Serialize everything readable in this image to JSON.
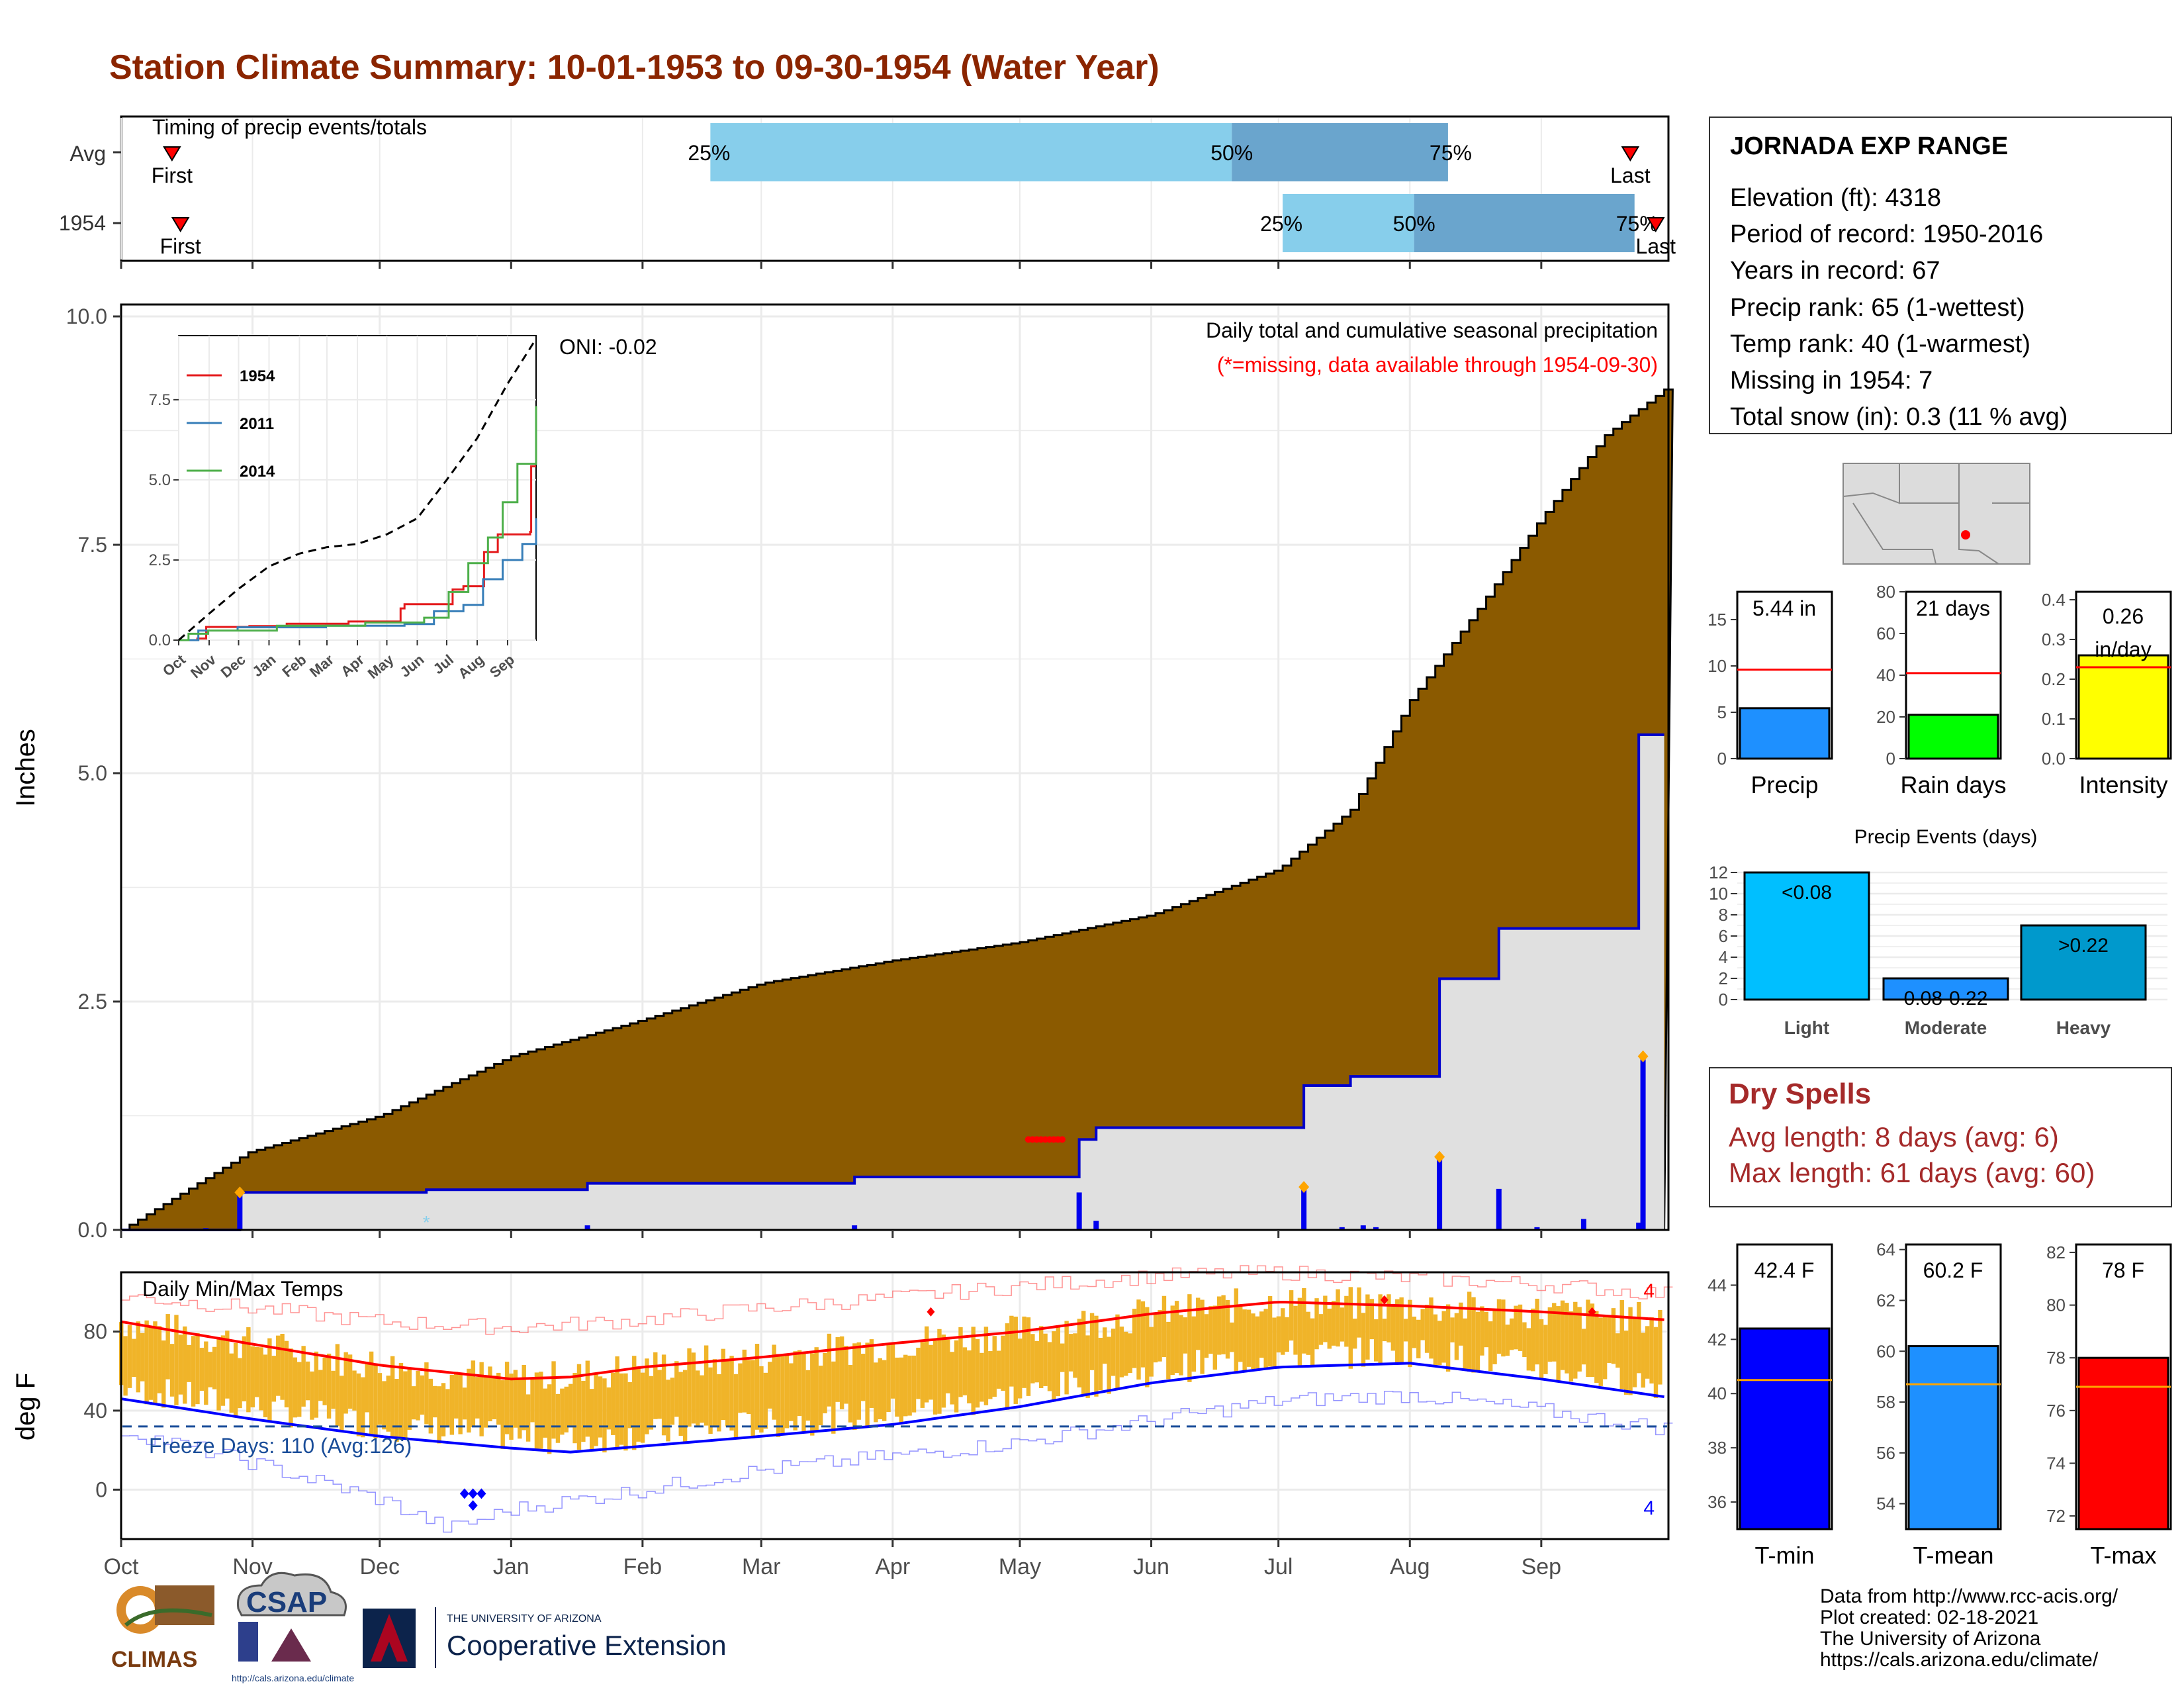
{
  "title": "Station Climate Summary: 10-01-1953 to 09-30-1954 (Water Year)",
  "colors": {
    "title": "#8b2500",
    "cumulative_fill": "#8b5a00",
    "current_line": "#0000cc",
    "gray_fill": "#e0e0e0",
    "pct_light": "#87ceeb",
    "pct_dark": "#6aa5cd",
    "tmin": "#0000ff",
    "tmax": "#ff0000",
    "range_bar": "#f0b429",
    "tmean": "#1e90ff",
    "rain_days": "#00ff00",
    "intensity": "#ffff00",
    "light": "#00bfff",
    "heavy": "#0099cc",
    "dry_spell": "#a52a2a"
  },
  "timing": {
    "label": "Timing of precip events/totals",
    "rows": [
      {
        "name": "Avg",
        "first_label": "First",
        "last_label": "Last",
        "first_day": 12,
        "last_day": 356,
        "p25_day": 139,
        "p50_day": 262,
        "p75_day": 313,
        "p25_label": "25%",
        "p50_label": "50%",
        "p75_label": "75%"
      },
      {
        "name": "1954",
        "first_label": "First",
        "last_label": "Last",
        "first_day": 14,
        "last_day": 362,
        "p25_day": 274,
        "p50_day": 305,
        "p75_day": 357,
        "p25_label": "25%",
        "p50_label": "50%",
        "p75_label": "75%"
      }
    ]
  },
  "precip": {
    "title_line1": "Daily total and cumulative seasonal precipitation",
    "title_line2": "(*=missing, data available through 1954-09-30)",
    "ylabel": "Inches",
    "ylim": [
      0,
      10
    ],
    "yticks": [
      "0.0",
      "2.5",
      "5.0",
      "7.5",
      "10.0"
    ],
    "oni": "ONI: -0.02",
    "avg_cumulative": [
      [
        0,
        0
      ],
      [
        30,
        0.85
      ],
      [
        61,
        1.25
      ],
      [
        92,
        1.9
      ],
      [
        123,
        2.3
      ],
      [
        151,
        2.7
      ],
      [
        182,
        2.95
      ],
      [
        212,
        3.15
      ],
      [
        243,
        3.45
      ],
      [
        273,
        3.95
      ],
      [
        290,
        4.6
      ],
      [
        304,
        5.8
      ],
      [
        320,
        6.8
      ],
      [
        335,
        7.8
      ],
      [
        350,
        8.7
      ],
      [
        364,
        9.2
      ]
    ],
    "current_cumulative": [
      [
        0,
        0
      ],
      [
        19,
        0
      ],
      [
        28,
        0
      ],
      [
        28,
        0.41
      ],
      [
        72,
        0.41
      ],
      [
        72,
        0.44
      ],
      [
        110,
        0.44
      ],
      [
        110,
        0.51
      ],
      [
        173,
        0.51
      ],
      [
        173,
        0.58
      ],
      [
        226,
        0.58
      ],
      [
        226,
        0.99
      ],
      [
        230,
        0.99
      ],
      [
        230,
        1.12
      ],
      [
        279,
        1.12
      ],
      [
        279,
        1.58
      ],
      [
        290,
        1.58
      ],
      [
        290,
        1.68
      ],
      [
        311,
        1.68
      ],
      [
        311,
        2.75
      ],
      [
        325,
        2.75
      ],
      [
        325,
        3.3
      ],
      [
        358,
        3.3
      ],
      [
        358,
        3.38
      ],
      [
        358,
        5.42
      ],
      [
        364,
        5.42
      ]
    ],
    "daily_bars": [
      [
        20,
        0.02
      ],
      [
        28,
        0.41
      ],
      [
        110,
        0.05
      ],
      [
        173,
        0.05
      ],
      [
        226,
        0.41
      ],
      [
        230,
        0.1
      ],
      [
        279,
        0.47
      ],
      [
        288,
        0.03
      ],
      [
        293,
        0.05
      ],
      [
        296,
        0.03
      ],
      [
        311,
        0.8
      ],
      [
        325,
        0.45
      ],
      [
        334,
        0.03
      ],
      [
        345,
        0.12
      ],
      [
        358,
        0.08
      ],
      [
        359,
        1.9
      ]
    ]
  },
  "inset": {
    "ylim": [
      0,
      9.5
    ],
    "yticks": [
      "0.0",
      "2.5",
      "5.0",
      "7.5"
    ],
    "months": [
      "Oct",
      "Nov",
      "Dec",
      "Jan",
      "Feb",
      "Mar",
      "Apr",
      "May",
      "Jun",
      "Jul",
      "Aug",
      "Sep"
    ],
    "series": [
      {
        "name": "1954",
        "color": "#e41a1c",
        "values": [
          [
            0,
            0
          ],
          [
            19,
            0.05
          ],
          [
            28,
            0.41
          ],
          [
            72,
            0.44
          ],
          [
            110,
            0.51
          ],
          [
            173,
            0.58
          ],
          [
            226,
            0.99
          ],
          [
            230,
            1.12
          ],
          [
            279,
            1.58
          ],
          [
            290,
            1.68
          ],
          [
            311,
            2.75
          ],
          [
            325,
            3.3
          ],
          [
            358,
            3.38
          ],
          [
            359,
            5.42
          ],
          [
            364,
            5.42
          ]
        ]
      },
      {
        "name": "2011",
        "color": "#377eb8",
        "values": [
          [
            0,
            0
          ],
          [
            20,
            0.3
          ],
          [
            60,
            0.4
          ],
          [
            150,
            0.45
          ],
          [
            230,
            0.5
          ],
          [
            260,
            0.9
          ],
          [
            290,
            1.1
          ],
          [
            310,
            1.9
          ],
          [
            330,
            2.5
          ],
          [
            350,
            3.0
          ],
          [
            364,
            3.8
          ]
        ]
      },
      {
        "name": "2014",
        "color": "#4daf4a",
        "values": [
          [
            0,
            0
          ],
          [
            10,
            0.2
          ],
          [
            30,
            0.3
          ],
          [
            100,
            0.45
          ],
          [
            190,
            0.55
          ],
          [
            250,
            0.7
          ],
          [
            275,
            1.5
          ],
          [
            295,
            2.4
          ],
          [
            315,
            3.2
          ],
          [
            330,
            4.3
          ],
          [
            345,
            5.5
          ],
          [
            364,
            7.3
          ]
        ]
      },
      {
        "name": "avg",
        "color": "#000000",
        "dashed": true,
        "values": [
          [
            0,
            0
          ],
          [
            30,
            0.8
          ],
          [
            61,
            1.6
          ],
          [
            92,
            2.3
          ],
          [
            123,
            2.7
          ],
          [
            151,
            2.9
          ],
          [
            182,
            3.0
          ],
          [
            212,
            3.3
          ],
          [
            243,
            3.8
          ],
          [
            273,
            5.0
          ],
          [
            304,
            6.3
          ],
          [
            335,
            8.0
          ],
          [
            364,
            9.4
          ]
        ]
      }
    ]
  },
  "temps": {
    "title": "Daily Min/Max Temps",
    "ylabel": "deg F",
    "ylim": [
      -25,
      110
    ],
    "yticks": [
      "0",
      "40",
      "80"
    ],
    "freeze_label": "Freeze Days: 110 (Avg:126)",
    "freeze_line": 32,
    "missing_max_count": "4",
    "missing_min_count": "4",
    "avg_max": [
      [
        0,
        85
      ],
      [
        30,
        74
      ],
      [
        61,
        63
      ],
      [
        92,
        56
      ],
      [
        106,
        57
      ],
      [
        123,
        62
      ],
      [
        151,
        67
      ],
      [
        182,
        74
      ],
      [
        212,
        80
      ],
      [
        243,
        89
      ],
      [
        273,
        95
      ],
      [
        304,
        93
      ],
      [
        335,
        90
      ],
      [
        364,
        86
      ]
    ],
    "avg_min": [
      [
        0,
        46
      ],
      [
        30,
        36
      ],
      [
        61,
        27
      ],
      [
        92,
        21
      ],
      [
        106,
        19
      ],
      [
        123,
        22
      ],
      [
        151,
        27
      ],
      [
        182,
        33
      ],
      [
        212,
        42
      ],
      [
        243,
        54
      ],
      [
        273,
        62
      ],
      [
        304,
        64
      ],
      [
        335,
        56
      ],
      [
        364,
        47
      ]
    ],
    "record_max": [
      [
        0,
        98
      ],
      [
        30,
        92
      ],
      [
        61,
        85
      ],
      [
        92,
        82
      ],
      [
        123,
        86
      ],
      [
        151,
        92
      ],
      [
        182,
        97
      ],
      [
        212,
        103
      ],
      [
        243,
        108
      ],
      [
        273,
        110
      ],
      [
        304,
        107
      ],
      [
        335,
        104
      ],
      [
        364,
        99
      ]
    ],
    "record_min": [
      [
        0,
        30
      ],
      [
        30,
        14
      ],
      [
        61,
        -5
      ],
      [
        77,
        -20
      ],
      [
        92,
        -10
      ],
      [
        123,
        0
      ],
      [
        151,
        10
      ],
      [
        182,
        17
      ],
      [
        212,
        24
      ],
      [
        243,
        35
      ],
      [
        273,
        45
      ],
      [
        304,
        48
      ],
      [
        335,
        40
      ],
      [
        364,
        31
      ]
    ]
  },
  "months_axis": [
    "Oct",
    "Nov",
    "Dec",
    "Jan",
    "Feb",
    "Mar",
    "Apr",
    "May",
    "Jun",
    "Jul",
    "Aug",
    "Sep"
  ],
  "month_days": [
    0,
    31,
    61,
    92,
    123,
    151,
    182,
    212,
    243,
    273,
    304,
    335
  ],
  "stations": {
    "name": "JORNADA EXP RANGE",
    "elevation": "Elevation (ft): 4318",
    "period": "Period of record: 1950-2016",
    "years": "Years in record: 67",
    "precip_rank": "Precip rank: 65 (1-wettest)",
    "temp_rank": "Temp rank: 40 (1-warmest)",
    "missing": "Missing in 1954: 7",
    "snow": "Total snow (in): 0.3 (11 % avg)"
  },
  "summary_bars": [
    {
      "label": "Precip",
      "value": 5.44,
      "value_label": "5.44 in",
      "avg": 9.6,
      "ylim": [
        0,
        18
      ],
      "yticks": [
        0,
        5,
        10,
        15
      ],
      "color": "#1e90ff"
    },
    {
      "label": "Rain days",
      "value": 21,
      "value_label": "21 days",
      "avg": 41,
      "ylim": [
        0,
        80
      ],
      "yticks": [
        0,
        20,
        40,
        60,
        80
      ],
      "color": "#00ff00"
    },
    {
      "label": "Intensity",
      "value": 0.26,
      "value_label": "0.26 in/day",
      "avg": 0.23,
      "ylim": [
        0,
        0.42
      ],
      "yticks": [
        "0.0",
        "0.1",
        "0.2",
        "0.3",
        "0.4"
      ],
      "color": "#ffff00"
    }
  ],
  "events": {
    "title": "Precip Events (days)",
    "categories": [
      "Light",
      "Moderate",
      "Heavy"
    ],
    "bar_labels": [
      "<0.08",
      "0.08-0.22",
      ">0.22"
    ],
    "values": [
      12,
      2,
      7
    ],
    "ylim": [
      0,
      12.5
    ],
    "yticks": [
      0,
      2,
      4,
      6,
      8,
      10,
      12
    ],
    "colors": [
      "#00bfff",
      "#1e90ff",
      "#0099cc"
    ]
  },
  "dry_spells": {
    "title": "Dry Spells",
    "avg": "Avg length: 8 days (avg: 6)",
    "max": "Max length: 61 days (avg: 60)"
  },
  "temp_bars": [
    {
      "label": "T-min",
      "value": 42.4,
      "value_label": "42.4 F",
      "avg": 40.5,
      "ylim": [
        35,
        45.5
      ],
      "yticks": [
        36,
        38,
        40,
        42,
        44
      ],
      "color": "#0000ff"
    },
    {
      "label": "T-mean",
      "value": 60.2,
      "value_label": "60.2 F",
      "avg": 58.7,
      "ylim": [
        53,
        64.2
      ],
      "yticks": [
        54,
        56,
        58,
        60,
        62,
        64
      ],
      "color": "#1e90ff"
    },
    {
      "label": "T-max",
      "value": 78,
      "value_label": "78 F",
      "avg": 76.9,
      "ylim": [
        71.5,
        82.3
      ],
      "yticks": [
        72,
        74,
        76,
        78,
        80,
        82
      ],
      "color": "#ff0000"
    }
  ],
  "credits": {
    "line1": "Data from http://www.rcc-acis.org/",
    "line2": "Plot created: 02-18-2021",
    "line3": "The University of Arizona",
    "line4": "https://cals.arizona.edu/climate/"
  },
  "logos": {
    "climas": "CLIMAS",
    "csap": "CSAP",
    "csap_url": "http://cals.arizona.edu/climate",
    "ua_small": "THE UNIVERSITY OF ARIZONA",
    "ua_big": "Cooperative Extension"
  }
}
